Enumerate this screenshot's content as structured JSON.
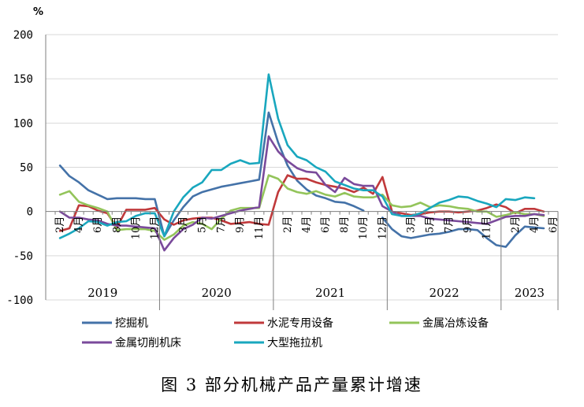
{
  "chart_data": {
    "type": "line",
    "title": "图 3 部分机械产品产量累计增速",
    "unit_label": "%",
    "xlabel": "",
    "ylabel": "",
    "ylim": [
      -100,
      200
    ],
    "yticks": [
      -100,
      -50,
      0,
      50,
      100,
      150,
      200
    ],
    "grid": true,
    "legend_position": "bottom",
    "x": [
      "2019-01",
      "2019-02",
      "2019-03",
      "2019-04",
      "2019-05",
      "2019-06",
      "2019-07",
      "2019-08",
      "2019-09",
      "2019-10",
      "2019-11",
      "2019-12",
      "2020-01",
      "2020-02",
      "2020-03",
      "2020-04",
      "2020-05",
      "2020-06",
      "2020-07",
      "2020-08",
      "2020-09",
      "2020-10",
      "2020-11",
      "2020-12",
      "2021-01",
      "2021-02",
      "2021-03",
      "2021-04",
      "2021-05",
      "2021-06",
      "2021-07",
      "2021-08",
      "2021-09",
      "2021-10",
      "2021-11",
      "2021-12",
      "2022-01",
      "2022-02",
      "2022-03",
      "2022-04",
      "2022-05",
      "2022-06",
      "2022-07",
      "2022-08",
      "2022-09",
      "2022-10",
      "2022-11",
      "2022-12",
      "2023-01",
      "2023-02",
      "2023-03",
      "2023-04",
      "2023-05",
      "2023-06"
    ],
    "month_tick_labels": [
      {
        "i": 1,
        "label": "2月"
      },
      {
        "i": 3,
        "label": "4月"
      },
      {
        "i": 5,
        "label": "6月"
      },
      {
        "i": 7,
        "label": "8月"
      },
      {
        "i": 9,
        "label": "10月"
      },
      {
        "i": 11,
        "label": "12月"
      },
      {
        "i": 14,
        "label": "3月"
      },
      {
        "i": 16,
        "label": "5月"
      },
      {
        "i": 18,
        "label": "7月"
      },
      {
        "i": 20,
        "label": "9月"
      },
      {
        "i": 22,
        "label": "11月"
      },
      {
        "i": 25,
        "label": "2月"
      },
      {
        "i": 27,
        "label": "4月"
      },
      {
        "i": 29,
        "label": "6月"
      },
      {
        "i": 31,
        "label": "8月"
      },
      {
        "i": 33,
        "label": "10月"
      },
      {
        "i": 35,
        "label": "12月"
      },
      {
        "i": 38,
        "label": "3月"
      },
      {
        "i": 40,
        "label": "5月"
      },
      {
        "i": 42,
        "label": "7月"
      },
      {
        "i": 44,
        "label": "9月"
      },
      {
        "i": 46,
        "label": "11月"
      },
      {
        "i": 49,
        "label": "2月"
      },
      {
        "i": 51,
        "label": "4月"
      },
      {
        "i": 53,
        "label": "6月"
      }
    ],
    "year_labels": [
      {
        "label": "2019",
        "from": 0,
        "to": 11
      },
      {
        "label": "2020",
        "from": 12,
        "to": 23
      },
      {
        "label": "2021",
        "from": 24,
        "to": 35
      },
      {
        "label": "2022",
        "from": 36,
        "to": 47
      },
      {
        "label": "2023",
        "from": 48,
        "to": 53
      }
    ],
    "series": [
      {
        "name": "挖掘机",
        "color": "#4472A8",
        "values": [
          null,
          52,
          40,
          33,
          24,
          19,
          14,
          15,
          15,
          15,
          14,
          14,
          -28,
          -10,
          5,
          17,
          22,
          25,
          28,
          30,
          32,
          34,
          36,
          112,
          78,
          52,
          35,
          25,
          18,
          15,
          11,
          10,
          6,
          1,
          null,
          -7,
          -20,
          -28,
          -30,
          -28,
          -26,
          -25,
          -23,
          -20,
          -20,
          -21,
          -30,
          -38,
          -40,
          -27,
          -17,
          -18,
          -19,
          null
        ]
      },
      {
        "name": "水泥专用设备",
        "color": "#C0393B",
        "values": [
          null,
          -22,
          -19,
          7,
          6,
          1,
          -2,
          -18,
          2,
          2,
          2,
          4,
          -9,
          -15,
          -10,
          -8,
          -7,
          -7,
          -10,
          -14,
          -13,
          -12,
          -14,
          -15,
          22,
          41,
          37,
          37,
          33,
          30,
          28,
          26,
          22,
          27,
          20,
          39,
          0,
          -2,
          -4,
          -3,
          -1,
          0,
          0,
          -1,
          0,
          1,
          4,
          8,
          5,
          -2,
          3,
          3,
          0,
          null
        ]
      },
      {
        "name": "金属冶炼设备",
        "color": "#93C45A",
        "values": [
          null,
          19,
          23,
          11,
          7,
          4,
          0,
          -21,
          -20,
          -20,
          -20,
          -22,
          -32,
          -26,
          -16,
          -12,
          -14,
          -20,
          -8,
          1,
          4,
          4,
          4,
          41,
          37,
          26,
          22,
          20,
          23,
          19,
          17,
          21,
          17,
          16,
          16,
          19,
          7,
          5,
          6,
          10,
          5,
          7,
          6,
          4,
          3,
          0,
          0,
          -6,
          -4,
          -1,
          -3,
          -3,
          -5,
          null
        ]
      },
      {
        "name": "金属切削机床",
        "color": "#7A4A9B",
        "values": [
          null,
          0,
          -7,
          -7,
          -9,
          -10,
          -14,
          -16,
          -16,
          -17,
          -18,
          -19,
          -44,
          -30,
          -20,
          -15,
          -7,
          -8,
          -5,
          -2,
          1,
          3,
          5,
          85,
          68,
          57,
          49,
          45,
          44,
          30,
          22,
          38,
          31,
          29,
          29,
          6,
          0,
          -5,
          -5,
          -5,
          -8,
          -9,
          -10,
          -11,
          -12,
          -13,
          -14,
          -10,
          -6,
          -5,
          -5,
          -3,
          -4,
          null
        ]
      },
      {
        "name": "大型拖拉机",
        "color": "#19A7BE",
        "values": [
          null,
          -30,
          -25,
          -19,
          -11,
          -12,
          -16,
          -12,
          -11,
          -5,
          -2,
          -2,
          -28,
          0,
          16,
          27,
          33,
          47,
          47,
          54,
          58,
          54,
          55,
          155,
          105,
          75,
          62,
          58,
          50,
          45,
          34,
          30,
          26,
          24,
          24,
          17,
          -3,
          -5,
          -5,
          -2,
          4,
          10,
          13,
          17,
          16,
          12,
          9,
          5,
          14,
          13,
          16,
          15,
          null,
          null
        ]
      }
    ]
  }
}
